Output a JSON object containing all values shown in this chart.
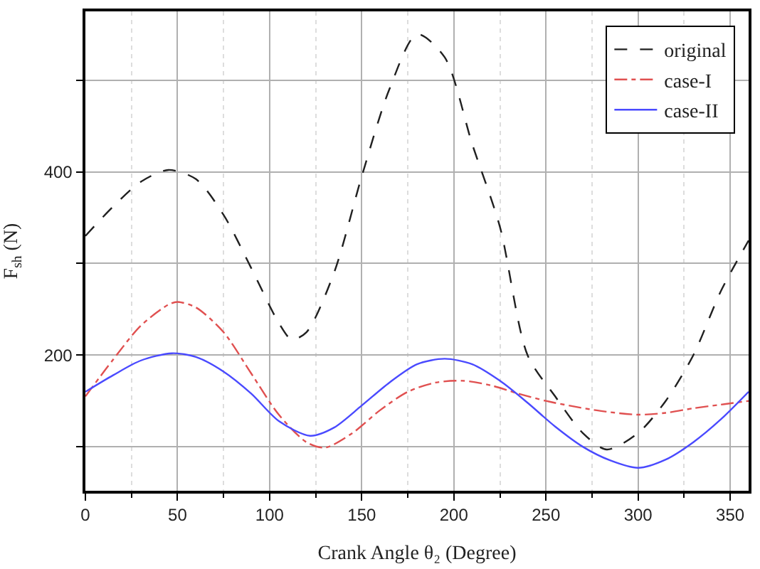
{
  "chart_data": {
    "type": "line",
    "xlabel": "Crank Angle θ₂ (Degree)",
    "ylabel": "F$_{sh}$ (N)",
    "xlim": [
      0,
      360
    ],
    "xticks": [
      0,
      50,
      100,
      150,
      200,
      250,
      300,
      350
    ],
    "ylim": [
      52,
      575
    ],
    "yticks": [
      {
        "value": 100,
        "label": null
      },
      200,
      {
        "value": 300,
        "label": null
      },
      400,
      {
        "value": 500,
        "label": null
      }
    ],
    "grid": true,
    "legend": "top right",
    "series": [
      {
        "name": "original",
        "color": "#202020",
        "line_style": "dashed",
        "x": [
          0,
          15,
          30,
          45,
          60,
          75,
          90,
          105,
          112,
          120,
          135,
          150,
          165,
          180,
          195,
          210,
          225,
          240,
          255,
          270,
          283,
          300,
          315,
          330,
          345,
          360
        ],
        "values": [
          330,
          362,
          389,
          402,
          392,
          353,
          295,
          235,
          217,
          225,
          290,
          395,
          490,
          550,
          525,
          430,
          340,
          200,
          155,
          115,
          97,
          115,
          150,
          200,
          270,
          325
        ]
      },
      {
        "name": "case-I",
        "color": "#e05050",
        "line_style": "dashdot",
        "x": [
          0,
          15,
          30,
          45,
          50,
          60,
          75,
          90,
          105,
          120,
          130,
          145,
          160,
          175,
          190,
          205,
          220,
          235,
          250,
          265,
          280,
          300,
          315,
          330,
          345,
          360
        ],
        "values": [
          155,
          195,
          232,
          255,
          258,
          252,
          225,
          180,
          135,
          105,
          99,
          115,
          140,
          160,
          170,
          172,
          167,
          158,
          150,
          144,
          139,
          135,
          137,
          142,
          146,
          150
        ]
      },
      {
        "name": "case-II",
        "color": "#4a4aff",
        "line_style": "solid",
        "x": [
          0,
          15,
          30,
          47,
          60,
          75,
          90,
          105,
          122,
          135,
          150,
          165,
          180,
          195,
          210,
          225,
          240,
          255,
          270,
          285,
          300,
          315,
          330,
          345,
          360
        ],
        "values": [
          160,
          178,
          194,
          202,
          198,
          182,
          158,
          128,
          112,
          121,
          145,
          170,
          190,
          196,
          190,
          172,
          148,
          122,
          100,
          85,
          77,
          86,
          105,
          130,
          160
        ]
      }
    ]
  }
}
